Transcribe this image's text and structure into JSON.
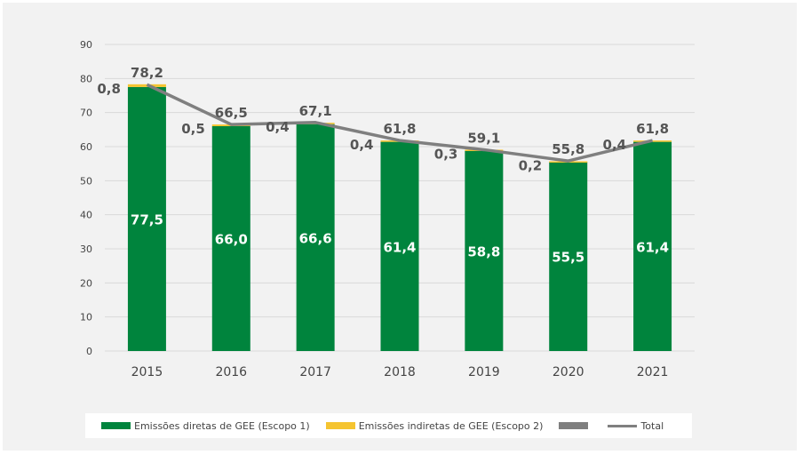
{
  "chart_data": {
    "type": "bar",
    "categories": [
      "2015",
      "2016",
      "2017",
      "2018",
      "2019",
      "2020",
      "2021"
    ],
    "series": [
      {
        "name": "Emissões diretas de GEE (Escopo 1)",
        "values": [
          77.5,
          66.0,
          66.6,
          61.4,
          58.8,
          55.5,
          61.4
        ],
        "labels": [
          "77,5",
          "66,0",
          "66,6",
          "61,4",
          "58,8",
          "55,5",
          "61,4"
        ],
        "color": "#00843d"
      },
      {
        "name": "Emissões indiretas de GEE (Escopo 2)",
        "values": [
          0.8,
          0.5,
          0.4,
          0.4,
          0.3,
          0.2,
          0.4
        ],
        "labels": [
          "0,8",
          "0,5",
          "0,4",
          "0,4",
          "0,3",
          "0,2",
          "0,4"
        ],
        "color": "#f5c430"
      },
      {
        "name": "Total",
        "type": "line",
        "values": [
          78.2,
          66.5,
          67.1,
          61.8,
          59.1,
          55.8,
          61.8
        ],
        "labels": [
          "78,2",
          "66,5",
          "67,1",
          "61,8",
          "59,1",
          "55,8",
          "61,8"
        ],
        "color": "#7f7f7f"
      }
    ],
    "yticks": [
      "0",
      "10",
      "20",
      "30",
      "40",
      "50",
      "60",
      "70",
      "80",
      "90"
    ],
    "ylim": [
      0,
      90
    ],
    "grid": true,
    "legend_position": "bottom",
    "legend_extra_swatch_color": "#7f7f7f"
  }
}
